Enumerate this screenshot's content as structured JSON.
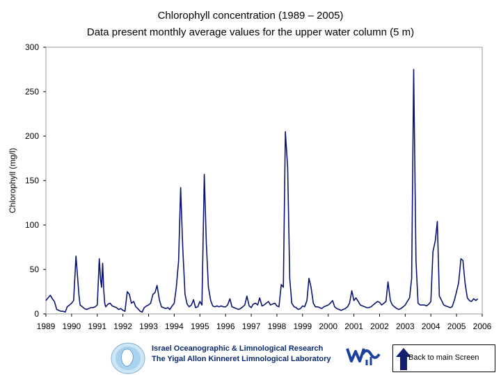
{
  "chart_data": {
    "type": "line",
    "title": "Chlorophyll concentration (1989 – 2005)",
    "subtitle": "Data present monthly average values for the upper water column (5 m)",
    "xlabel": "",
    "ylabel": "Chlorophyll (mg/l)",
    "xlim": [
      1989,
      2006
    ],
    "ylim": [
      0,
      300
    ],
    "x_ticks": [
      "1989",
      "1990",
      "1991",
      "1992",
      "1993",
      "1994",
      "1995",
      "1996",
      "1997",
      "1998",
      "1999",
      "2000",
      "2001",
      "2002",
      "2003",
      "2004",
      "2005",
      "2006"
    ],
    "y_ticks": [
      "0",
      "50",
      "100",
      "150",
      "200",
      "250",
      "300"
    ],
    "grid": false,
    "line_color": "#0a1470",
    "series": [
      {
        "x": [
          1989.0,
          1989.08,
          1989.17,
          1989.25,
          1989.33,
          1989.42,
          1989.5,
          1989.58,
          1989.67,
          1989.75,
          1989.83,
          1989.92,
          1990.0,
          1990.08,
          1990.17,
          1990.25,
          1990.29,
          1990.33,
          1990.42,
          1990.5,
          1990.58,
          1990.67,
          1990.75,
          1990.83,
          1990.92,
          1991.0,
          1991.08,
          1991.13,
          1991.17,
          1991.21,
          1991.25,
          1991.29,
          1991.33,
          1991.42,
          1991.5,
          1991.58,
          1991.67,
          1991.75,
          1991.83,
          1991.92,
          1992.0,
          1992.08,
          1992.17,
          1992.25,
          1992.33,
          1992.42,
          1992.5,
          1992.58,
          1992.67,
          1992.75,
          1992.83,
          1992.92,
          1993.0,
          1993.08,
          1993.17,
          1993.25,
          1993.33,
          1993.42,
          1993.5,
          1993.58,
          1993.67,
          1993.75,
          1993.83,
          1993.92,
          1994.0,
          1994.08,
          1994.17,
          1994.25,
          1994.33,
          1994.42,
          1994.5,
          1994.58,
          1994.67,
          1994.75,
          1994.83,
          1994.92,
          1995.0,
          1995.08,
          1995.17,
          1995.25,
          1995.33,
          1995.42,
          1995.5,
          1995.58,
          1995.67,
          1995.75,
          1995.83,
          1995.92,
          1996.0,
          1996.08,
          1996.17,
          1996.25,
          1996.33,
          1996.42,
          1996.5,
          1996.58,
          1996.67,
          1996.75,
          1996.83,
          1996.92,
          1997.0,
          1997.08,
          1997.17,
          1997.25,
          1997.33,
          1997.42,
          1997.5,
          1997.58,
          1997.67,
          1997.75,
          1997.83,
          1997.92,
          1998.0,
          1998.08,
          1998.17,
          1998.25,
          1998.33,
          1998.42,
          1998.5,
          1998.58,
          1998.67,
          1998.75,
          1998.83,
          1998.92,
          1999.0,
          1999.08,
          1999.17,
          1999.25,
          1999.33,
          1999.42,
          1999.5,
          1999.58,
          1999.67,
          1999.75,
          1999.83,
          1999.92,
          2000.0,
          2000.08,
          2000.17,
          2000.25,
          2000.33,
          2000.42,
          2000.5,
          2000.58,
          2000.67,
          2000.75,
          2000.83,
          2000.92,
          2001.0,
          2001.08,
          2001.17,
          2001.25,
          2001.33,
          2001.42,
          2001.5,
          2001.58,
          2001.67,
          2001.75,
          2001.83,
          2001.92,
          2002.0,
          2002.08,
          2002.17,
          2002.25,
          2002.33,
          2002.42,
          2002.5,
          2002.58,
          2002.67,
          2002.75,
          2002.83,
          2002.92,
          2003.0,
          2003.08,
          2003.17,
          2003.25,
          2003.33,
          2003.42,
          2003.5,
          2003.58,
          2003.67,
          2003.75,
          2003.83,
          2003.92,
          2004.0,
          2004.08,
          2004.17,
          2004.25,
          2004.33,
          2004.42,
          2004.5,
          2004.58,
          2004.67,
          2004.75,
          2004.83,
          2004.92,
          2005.0,
          2005.08,
          2005.17,
          2005.25,
          2005.33,
          2005.42,
          2005.5,
          2005.58,
          2005.67,
          2005.75,
          2005.83
        ],
        "y": [
          15,
          18,
          21,
          17,
          14,
          5,
          4,
          3,
          3,
          2,
          8,
          10,
          12,
          15,
          65,
          35,
          20,
          10,
          8,
          6,
          5,
          6,
          7,
          7,
          8,
          10,
          62,
          38,
          30,
          57,
          28,
          12,
          8,
          11,
          12,
          9,
          8,
          7,
          5,
          6,
          4,
          3,
          25,
          22,
          12,
          14,
          8,
          6,
          3,
          2,
          7,
          9,
          10,
          12,
          22,
          24,
          32,
          16,
          8,
          7,
          6,
          7,
          5,
          9,
          12,
          30,
          60,
          142,
          75,
          22,
          11,
          8,
          10,
          16,
          7,
          8,
          14,
          10,
          157,
          80,
          30,
          15,
          9,
          8,
          9,
          8,
          9,
          8,
          8,
          10,
          17,
          8,
          7,
          6,
          5,
          6,
          8,
          10,
          20,
          9,
          7,
          11,
          12,
          10,
          18,
          9,
          10,
          12,
          14,
          10,
          11,
          12,
          9,
          8,
          33,
          30,
          205,
          165,
          40,
          12,
          8,
          7,
          5,
          6,
          9,
          8,
          15,
          40,
          30,
          12,
          8,
          8,
          7,
          6,
          8,
          9,
          10,
          12,
          15,
          8,
          6,
          5,
          4,
          5,
          6,
          8,
          12,
          26,
          15,
          18,
          14,
          10,
          9,
          8,
          7,
          7,
          8,
          10,
          12,
          14,
          13,
          10,
          12,
          14,
          36,
          15,
          10,
          8,
          6,
          5,
          6,
          8,
          10,
          14,
          18,
          40,
          275,
          60,
          12,
          10,
          10,
          10,
          9,
          11,
          14,
          70,
          82,
          104,
          20,
          15,
          10,
          9,
          8,
          7,
          8,
          16,
          25,
          35,
          62,
          60,
          35,
          18,
          15,
          14,
          17,
          15,
          17
        ]
      }
    ]
  },
  "footer": {
    "institute_line1": "Israel Oceanographic & Limnological Research",
    "institute_line2": "The Yigal Allon Kinneret Limnological Laboratory",
    "back_button_label": "Back to main Screen"
  }
}
